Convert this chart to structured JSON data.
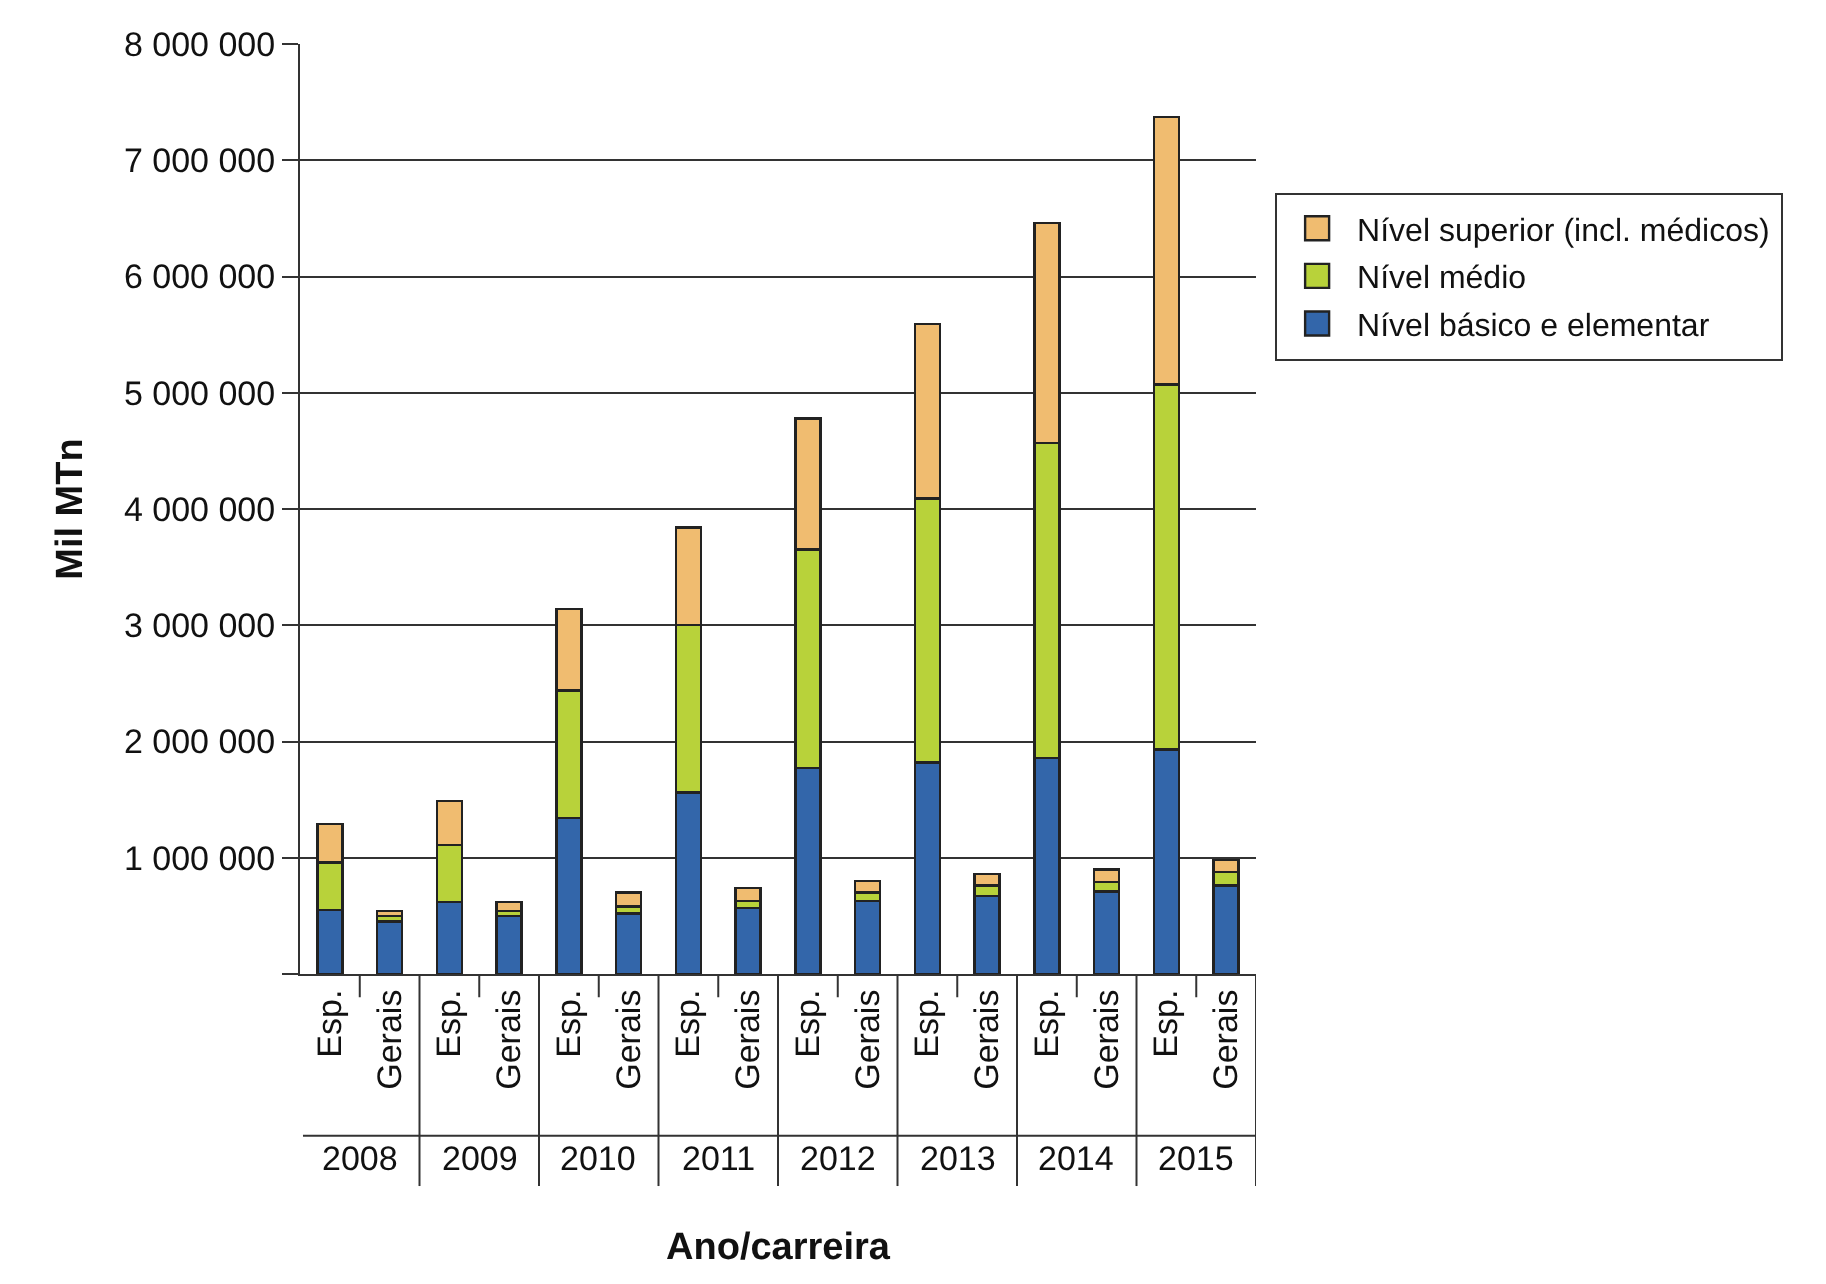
{
  "chart_data": {
    "type": "bar",
    "stacked": true,
    "xlabel": "Ano/carreira",
    "ylabel": "Mil MTn",
    "categories": [
      "Esp.",
      "Gerais",
      "Esp.",
      "Gerais",
      "Esp.",
      "Gerais",
      "Esp.",
      "Gerais",
      "Esp.",
      "Gerais",
      "Esp.",
      "Gerais",
      "Esp.",
      "Gerais",
      "Esp.",
      "Gerais"
    ],
    "annotations": [
      "2008",
      "2009",
      "2010",
      "2011",
      "2012",
      "2013",
      "2014",
      "2015"
    ],
    "series": [
      {
        "name": "Nível básico e elementar",
        "color": "#3366aa",
        "values": [
          550000,
          450000,
          620000,
          500000,
          1340000,
          520000,
          1560000,
          570000,
          1770000,
          630000,
          1820000,
          670000,
          1860000,
          710000,
          1930000,
          760000
        ]
      },
      {
        "name": "Nível médio",
        "color": "#b8d23a",
        "values": [
          410000,
          50000,
          490000,
          40000,
          1100000,
          60000,
          1440000,
          60000,
          1880000,
          70000,
          2270000,
          90000,
          2710000,
          80000,
          3140000,
          120000
        ]
      },
      {
        "name": "Nível superior (incl. médicos)",
        "color": "#f0bc70",
        "values": [
          330000,
          40000,
          380000,
          80000,
          700000,
          120000,
          840000,
          110000,
          1130000,
          100000,
          1500000,
          100000,
          1890000,
          110000,
          2300000,
          100000
        ]
      }
    ],
    "ylim": [
      0,
      8000000
    ],
    "yticks": [
      {
        "value": 0,
        "label": null
      },
      {
        "value": 1000000,
        "label": "1 000 000"
      },
      {
        "value": 2000000,
        "label": "2 000 000"
      },
      {
        "value": 3000000,
        "label": "3 000 000"
      },
      {
        "value": 4000000,
        "label": "4 000 000"
      },
      {
        "value": 5000000,
        "label": "5 000 000"
      },
      {
        "value": 6000000,
        "label": "6 000 000"
      },
      {
        "value": 7000000,
        "label": "7 000 000"
      },
      {
        "value": 8000000,
        "label": "8 000 000"
      }
    ],
    "grid": "y",
    "legend": "right"
  }
}
